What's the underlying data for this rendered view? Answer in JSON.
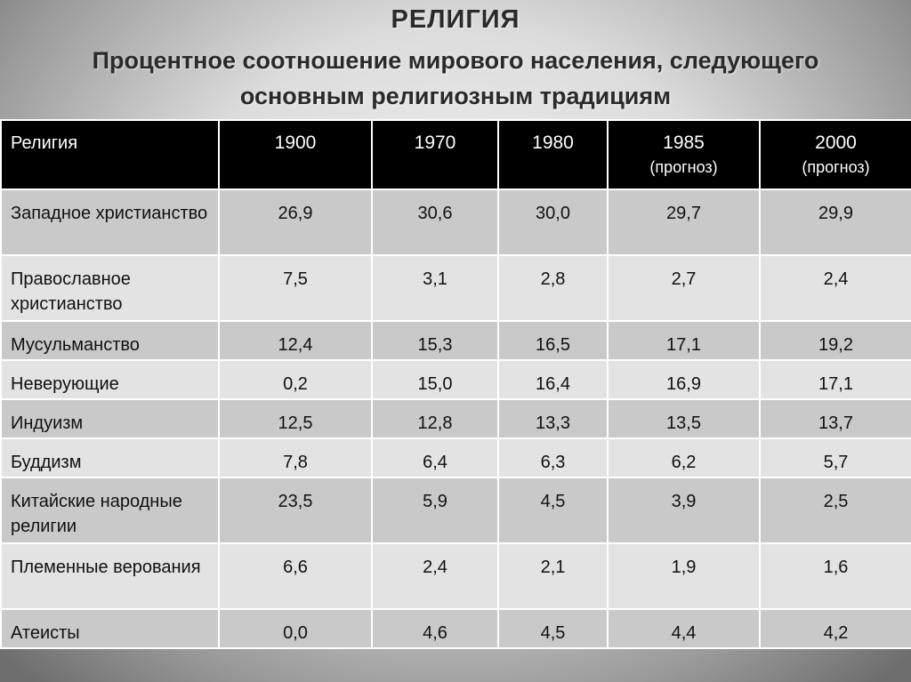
{
  "title": "РЕЛИГИЯ",
  "subtitle": "Процентное соотношение мирового населения, следующего основным религиозным традициям",
  "table": {
    "header": {
      "religion": "Религия",
      "y1900": "1900",
      "y1970": "1970",
      "y1980": "1980",
      "y1985": "1985",
      "y1985_note": "(прогноз)",
      "y2000": "2000",
      "y2000_note": "(прогноз)"
    },
    "rows": [
      {
        "name": "Западное христианство",
        "v": [
          "26,9",
          "30,6",
          "30,0",
          "29,7",
          "29,9"
        ]
      },
      {
        "name": "Православное христианство",
        "v": [
          "7,5",
          "3,1",
          "2,8",
          "2,7",
          "2,4"
        ]
      },
      {
        "name": "Мусульманство",
        "v": [
          "12,4",
          "15,3",
          "16,5",
          "17,1",
          "19,2"
        ]
      },
      {
        "name": "Неверующие",
        "v": [
          "0,2",
          "15,0",
          "16,4",
          "16,9",
          "17,1"
        ]
      },
      {
        "name": "Индуизм",
        "v": [
          "12,5",
          "12,8",
          "13,3",
          "13,5",
          "13,7"
        ]
      },
      {
        "name": "Буддизм",
        "v": [
          "7,8",
          "6,4",
          "6,3",
          "6,2",
          "5,7"
        ]
      },
      {
        "name": "Китайские народные религии",
        "v": [
          "23,5",
          "5,9",
          "4,5",
          "3,9",
          "2,5"
        ]
      },
      {
        "name": "Племенные верования",
        "v": [
          "6,6",
          "2,4",
          "2,1",
          "1,9",
          "1,6"
        ]
      },
      {
        "name": "Атеисты",
        "v": [
          "0,0",
          "4,6",
          "4,5",
          "4,4",
          "4,2"
        ]
      }
    ]
  }
}
